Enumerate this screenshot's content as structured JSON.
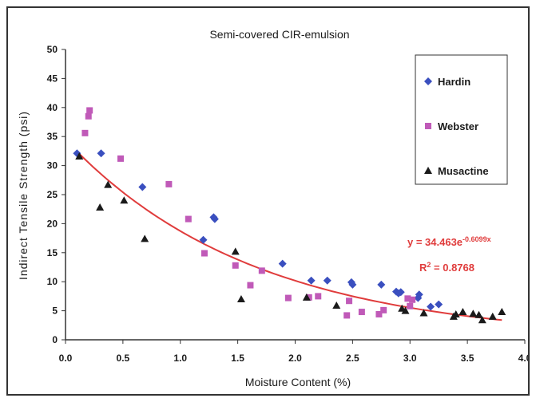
{
  "chart_data": {
    "type": "scatter",
    "title": "Semi-covered CIR-emulsion",
    "xlabel": "Moisture Content (%)",
    "ylabel": "Indirect Tensile Strength (psi)",
    "xlim": [
      0.0,
      4.0
    ],
    "ylim": [
      0,
      50
    ],
    "x_ticks": [
      "0.0",
      "0.5",
      "1.0",
      "1.5",
      "2.0",
      "2.5",
      "3.0",
      "3.5",
      "4.0"
    ],
    "y_ticks": [
      "0",
      "5",
      "10",
      "15",
      "20",
      "25",
      "30",
      "35",
      "40",
      "45",
      "50"
    ],
    "grid": false,
    "legend_position": "top-right",
    "series": [
      {
        "name": "Hardin",
        "marker": "diamond",
        "color": "#3a4fbf",
        "points": [
          [
            0.1,
            32.1
          ],
          [
            0.31,
            32.1
          ],
          [
            0.67,
            26.3
          ],
          [
            1.2,
            17.2
          ],
          [
            1.29,
            21.1
          ],
          [
            1.3,
            20.8
          ],
          [
            1.89,
            13.1
          ],
          [
            2.14,
            10.2
          ],
          [
            2.28,
            10.2
          ],
          [
            2.49,
            9.9
          ],
          [
            2.5,
            9.5
          ],
          [
            2.75,
            9.5
          ],
          [
            2.88,
            8.3
          ],
          [
            2.9,
            8.0
          ],
          [
            2.92,
            8.2
          ],
          [
            3.07,
            7.2
          ],
          [
            3.08,
            7.8
          ],
          [
            3.18,
            5.7
          ],
          [
            3.25,
            6.1
          ]
        ]
      },
      {
        "name": "Webster",
        "marker": "square",
        "color": "#c05ab8",
        "points": [
          [
            0.17,
            35.6
          ],
          [
            0.2,
            38.5
          ],
          [
            0.21,
            39.5
          ],
          [
            0.48,
            31.2
          ],
          [
            0.9,
            26.8
          ],
          [
            1.07,
            20.8
          ],
          [
            1.21,
            14.9
          ],
          [
            1.48,
            12.8
          ],
          [
            1.61,
            9.4
          ],
          [
            1.71,
            11.9
          ],
          [
            1.94,
            7.2
          ],
          [
            2.12,
            7.3
          ],
          [
            2.2,
            7.5
          ],
          [
            2.45,
            4.2
          ],
          [
            2.47,
            6.7
          ],
          [
            2.58,
            4.8
          ],
          [
            2.73,
            4.4
          ],
          [
            2.77,
            5.1
          ],
          [
            2.98,
            7.1
          ],
          [
            3.0,
            5.8
          ],
          [
            3.02,
            6.9
          ]
        ]
      },
      {
        "name": "Musactine",
        "marker": "triangle",
        "color": "#1a1a1a",
        "points": [
          [
            0.12,
            31.6
          ],
          [
            0.3,
            22.8
          ],
          [
            0.37,
            26.7
          ],
          [
            0.51,
            24.0
          ],
          [
            0.69,
            17.4
          ],
          [
            1.48,
            15.2
          ],
          [
            1.53,
            7.0
          ],
          [
            2.1,
            7.3
          ],
          [
            2.36,
            5.9
          ],
          [
            2.93,
            5.4
          ],
          [
            2.96,
            5.0
          ],
          [
            3.12,
            4.6
          ],
          [
            3.38,
            4.0
          ],
          [
            3.4,
            4.4
          ],
          [
            3.46,
            4.8
          ],
          [
            3.55,
            4.5
          ],
          [
            3.6,
            4.3
          ],
          [
            3.63,
            3.4
          ],
          [
            3.72,
            4.0
          ],
          [
            3.8,
            4.8
          ]
        ]
      }
    ],
    "trendline": {
      "type": "exponential",
      "a": 34.463,
      "b": -0.6099,
      "x_range": [
        0.1,
        3.8
      ],
      "color": "#e03c3c",
      "equation_base": "y = 34.463e",
      "equation_exponent": "-0.6099x",
      "r2_prefix": "R",
      "r2_power": "2",
      "r2_value": " = 0.8768"
    }
  }
}
